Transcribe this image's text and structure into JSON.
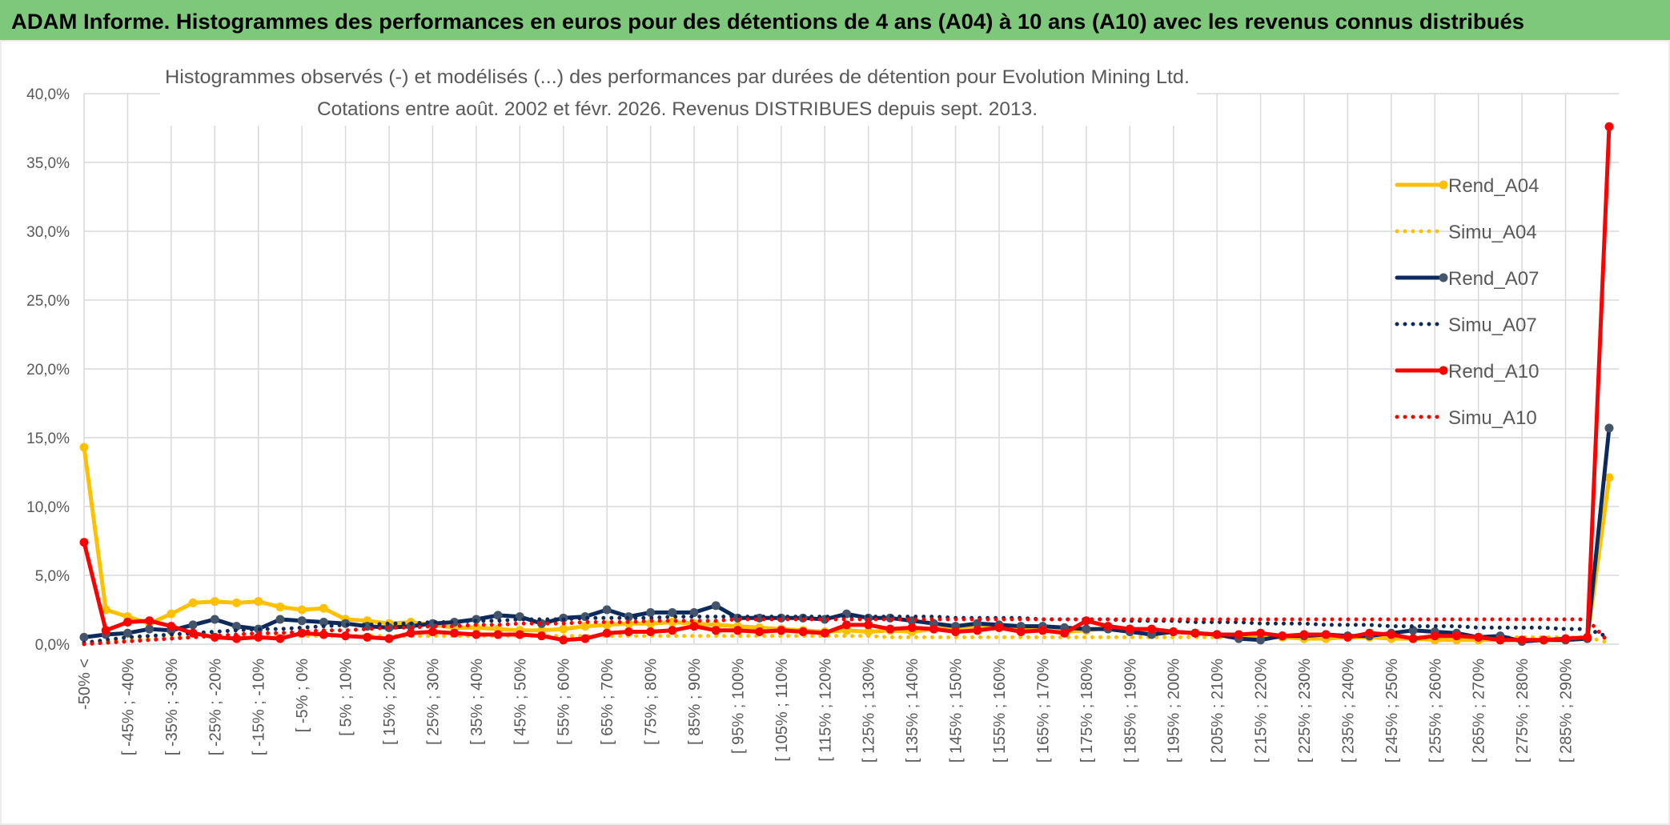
{
  "header": {
    "title": "ADAM Informe. Histogrammes des performances en euros pour des détentions de 4 ans (A04) à 10 ans (A10) avec les revenus connus distribués"
  },
  "chart_data": {
    "type": "line",
    "title": "Histogrammes observés (-) et modélisés (...) des performances par durées de détention pour Evolution Mining Ltd.",
    "subtitle": "Cotations entre août. 2002 et févr. 2026. Revenus DISTRIBUES depuis sept. 2013.",
    "categories": [
      "-50% <",
      null,
      "[ -45% ; -40%",
      null,
      "[ -35% ; -30%",
      null,
      "[ -25% ; -20%",
      null,
      "[ -15% ; -10%",
      null,
      "[ -5% ; 0%",
      null,
      "[ 5% ; 10%",
      null,
      "[ 15% ; 20%",
      null,
      "[ 25% ; 30%",
      null,
      "[ 35% ; 40%",
      null,
      "[ 45% ; 50%",
      null,
      "[ 55% ; 60%",
      null,
      "[ 65% ; 70%",
      null,
      "[ 75% ; 80%",
      null,
      "[ 85% ; 90%",
      null,
      "[ 95% ; 100%",
      null,
      "[ 105% ; 110%",
      null,
      "[ 115% ; 120%",
      null,
      "[ 125% ; 130%",
      null,
      "[ 135% ; 140%",
      null,
      "[ 145% ; 150%",
      null,
      "[ 155% ; 160%",
      null,
      "[ 165% ; 170%",
      null,
      "[ 175% ; 180%",
      null,
      "[ 185% ; 190%",
      null,
      "[ 195% ; 200%",
      null,
      "[ 205% ; 210%",
      null,
      "[ 215% ; 220%",
      null,
      "[ 225% ; 230%",
      null,
      "[ 235% ; 240%",
      null,
      "[ 245% ; 250%",
      null,
      "[ 255% ; 260%",
      null,
      "[ 265% ; 270%",
      null,
      "[ 275% ; 280%",
      null,
      "[ 285% ; 290%",
      null,
      null
    ],
    "series": [
      {
        "name": "Rend_A04",
        "color": "#ffc000",
        "style": "solid",
        "values": [
          14.3,
          2.5,
          2.0,
          1.5,
          2.2,
          3.0,
          3.1,
          3.0,
          3.1,
          2.7,
          2.5,
          2.6,
          1.8,
          1.7,
          1.5,
          1.6,
          1.4,
          1.2,
          1.2,
          1.1,
          1.0,
          1.0,
          1.1,
          1.3,
          1.4,
          1.5,
          1.5,
          1.6,
          1.5,
          1.4,
          1.3,
          1.2,
          1.1,
          1.0,
          0.9,
          1.0,
          0.9,
          1.0,
          0.9,
          1.1,
          1.2,
          1.3,
          1.2,
          1.1,
          1.0,
          0.9,
          1.0,
          1.2,
          1.1,
          1.0,
          0.9,
          0.8,
          0.7,
          0.6,
          0.5,
          0.5,
          0.4,
          0.4,
          0.5,
          0.5,
          0.4,
          0.4,
          0.3,
          0.3,
          0.3,
          0.3,
          0.3,
          0.3,
          0.3,
          0.4,
          12.1
        ]
      },
      {
        "name": "Simu_A04",
        "color": "#ffc000",
        "style": "dotted",
        "values": [
          0.0,
          0.2,
          0.3,
          0.4,
          0.5,
          0.5,
          0.6,
          0.6,
          0.6,
          0.6,
          0.6,
          0.6,
          0.6,
          0.6,
          0.6,
          0.6,
          0.6,
          0.6,
          0.6,
          0.6,
          0.6,
          0.6,
          0.6,
          0.6,
          0.6,
          0.6,
          0.6,
          0.6,
          0.6,
          0.6,
          0.6,
          0.6,
          0.6,
          0.6,
          0.6,
          0.6,
          0.6,
          0.5,
          0.5,
          0.5,
          0.5,
          0.5,
          0.5,
          0.5,
          0.5,
          0.5,
          0.5,
          0.5,
          0.5,
          0.5,
          0.5,
          0.5,
          0.5,
          0.5,
          0.5,
          0.5,
          0.5,
          0.5,
          0.5,
          0.5,
          0.5,
          0.5,
          0.5,
          0.5,
          0.5,
          0.5,
          0.5,
          0.5,
          0.5,
          0.5,
          0.1
        ]
      },
      {
        "name": "Rend_A07",
        "color": "#0d2a5c",
        "style": "solid",
        "values": [
          0.5,
          0.7,
          0.8,
          1.1,
          1.0,
          1.4,
          1.8,
          1.3,
          1.1,
          1.8,
          1.7,
          1.6,
          1.5,
          1.3,
          1.2,
          1.3,
          1.5,
          1.6,
          1.8,
          2.1,
          2.0,
          1.5,
          1.9,
          2.0,
          2.5,
          2.0,
          2.3,
          2.3,
          2.3,
          2.8,
          1.9,
          1.9,
          1.9,
          1.9,
          1.8,
          2.2,
          1.9,
          1.9,
          1.7,
          1.5,
          1.3,
          1.5,
          1.4,
          1.3,
          1.3,
          1.2,
          1.1,
          1.1,
          0.9,
          0.7,
          0.9,
          0.8,
          0.7,
          0.4,
          0.3,
          0.6,
          0.6,
          0.7,
          0.6,
          0.6,
          0.8,
          1.0,
          0.9,
          0.8,
          0.5,
          0.6,
          0.2,
          0.3,
          0.3,
          0.4,
          15.7
        ]
      },
      {
        "name": "Simu_A07",
        "color": "#0d2a5c",
        "style": "dotted",
        "values": [
          0.1,
          0.3,
          0.5,
          0.6,
          0.7,
          0.8,
          0.9,
          1.0,
          1.1,
          1.1,
          1.2,
          1.3,
          1.4,
          1.4,
          1.5,
          1.5,
          1.6,
          1.6,
          1.7,
          1.7,
          1.8,
          1.8,
          1.8,
          1.9,
          1.9,
          1.9,
          1.9,
          2.0,
          2.0,
          2.0,
          2.0,
          2.0,
          2.0,
          2.0,
          2.0,
          2.0,
          2.0,
          2.0,
          2.0,
          2.0,
          1.9,
          1.9,
          1.9,
          1.9,
          1.8,
          1.8,
          1.8,
          1.8,
          1.7,
          1.7,
          1.7,
          1.6,
          1.6,
          1.6,
          1.5,
          1.5,
          1.5,
          1.4,
          1.4,
          1.4,
          1.3,
          1.3,
          1.3,
          1.3,
          1.2,
          1.2,
          1.2,
          1.2,
          1.1,
          1.1,
          0.5
        ]
      },
      {
        "name": "Rend_A10",
        "color": "#ff0000",
        "style": "solid",
        "values": [
          7.4,
          1.0,
          1.6,
          1.7,
          1.3,
          0.8,
          0.5,
          0.4,
          0.5,
          0.4,
          0.8,
          0.7,
          0.6,
          0.5,
          0.4,
          0.8,
          0.9,
          0.8,
          0.7,
          0.7,
          0.7,
          0.6,
          0.3,
          0.4,
          0.8,
          0.9,
          0.9,
          1.0,
          1.3,
          1.0,
          1.0,
          0.9,
          1.0,
          0.9,
          0.8,
          1.4,
          1.4,
          1.1,
          1.2,
          1.1,
          0.9,
          1.0,
          1.2,
          0.9,
          1.0,
          0.8,
          1.7,
          1.3,
          1.1,
          1.1,
          0.9,
          0.8,
          0.7,
          0.7,
          0.8,
          0.6,
          0.7,
          0.7,
          0.5,
          0.8,
          0.7,
          0.4,
          0.6,
          0.6,
          0.5,
          0.3,
          0.3,
          0.3,
          0.4,
          0.5,
          37.6
        ]
      },
      {
        "name": "Simu_A10",
        "color": "#ff0000",
        "style": "dotted",
        "values": [
          0.0,
          0.1,
          0.2,
          0.3,
          0.4,
          0.5,
          0.6,
          0.7,
          0.8,
          0.8,
          0.9,
          1.0,
          1.0,
          1.1,
          1.2,
          1.2,
          1.3,
          1.3,
          1.4,
          1.4,
          1.5,
          1.5,
          1.5,
          1.6,
          1.6,
          1.6,
          1.7,
          1.7,
          1.7,
          1.7,
          1.8,
          1.8,
          1.8,
          1.8,
          1.8,
          1.8,
          1.8,
          1.8,
          1.8,
          1.8,
          1.8,
          1.8,
          1.8,
          1.8,
          1.8,
          1.8,
          1.8,
          1.8,
          1.8,
          1.8,
          1.8,
          1.8,
          1.8,
          1.8,
          1.8,
          1.8,
          1.8,
          1.8,
          1.8,
          1.8,
          1.8,
          1.8,
          1.8,
          1.8,
          1.8,
          1.8,
          1.8,
          1.8,
          1.8,
          1.8,
          0.1
        ]
      }
    ],
    "ylim": [
      0,
      40
    ],
    "yticks": [
      {
        "value": 0,
        "label": "0,0%"
      },
      {
        "value": 5,
        "label": "5,0%"
      },
      {
        "value": 10,
        "label": "10,0%"
      },
      {
        "value": 15,
        "label": "15,0%"
      },
      {
        "value": 20,
        "label": "20,0%"
      },
      {
        "value": 25,
        "label": "25,0%"
      },
      {
        "value": 30,
        "label": "30,0%"
      },
      {
        "value": 35,
        "label": "35,0%"
      },
      {
        "value": 40,
        "label": "40,0%"
      }
    ],
    "grid": true,
    "legend": "right"
  }
}
